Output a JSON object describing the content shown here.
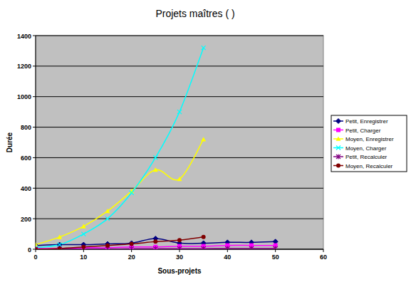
{
  "chart_data": {
    "type": "line",
    "title": "Projets maîtres (      )",
    "x_label": "Sous-projets",
    "y_label": "Durée",
    "x": [
      0,
      5,
      10,
      15,
      20,
      25,
      30,
      35,
      40,
      45,
      50
    ],
    "xlim": [
      0,
      60
    ],
    "xticks": [
      0,
      10,
      20,
      30,
      40,
      50,
      60
    ],
    "ylim": [
      0,
      1400
    ],
    "yticks": [
      0,
      200,
      400,
      600,
      800,
      1000,
      1200,
      1400
    ],
    "grid": true,
    "legend": "right",
    "series": [
      {
        "name": "Petit, Enregistrer",
        "color": "#000080",
        "marker": "diamond",
        "line_style": "solid",
        "values": [
          25,
          30,
          30,
          35,
          40,
          70,
          40,
          40,
          45,
          45,
          50
        ]
      },
      {
        "name": "Petit, Charger",
        "color": "#ff00ff",
        "marker": "square",
        "line_style": "solid",
        "values": [
          5,
          5,
          10,
          10,
          15,
          15,
          20,
          20,
          25,
          25,
          25
        ]
      },
      {
        "name": "Moyen, Enregistrer",
        "color": "#ffff00",
        "marker": "triangle",
        "line_style": "solid",
        "values": [
          30,
          80,
          150,
          250,
          380,
          520,
          460,
          720,
          null,
          null,
          null
        ]
      },
      {
        "name": "Moyen, Charger",
        "color": "#00ffff",
        "marker": "x",
        "line_style": "solid",
        "values": [
          10,
          30,
          100,
          200,
          370,
          600,
          900,
          1320,
          null,
          null,
          null
        ]
      },
      {
        "name": "Petit, Recalculer",
        "color": "#800080",
        "marker": "star",
        "line_style": "solid",
        "values": [
          0,
          1,
          2,
          2,
          3,
          3,
          4,
          4,
          5,
          5,
          5
        ]
      },
      {
        "name": "Moyen, Recalculer",
        "color": "#800000",
        "marker": "circle",
        "line_style": "solid",
        "values": [
          0,
          5,
          15,
          25,
          35,
          50,
          60,
          80,
          null,
          null,
          null
        ]
      }
    ]
  }
}
